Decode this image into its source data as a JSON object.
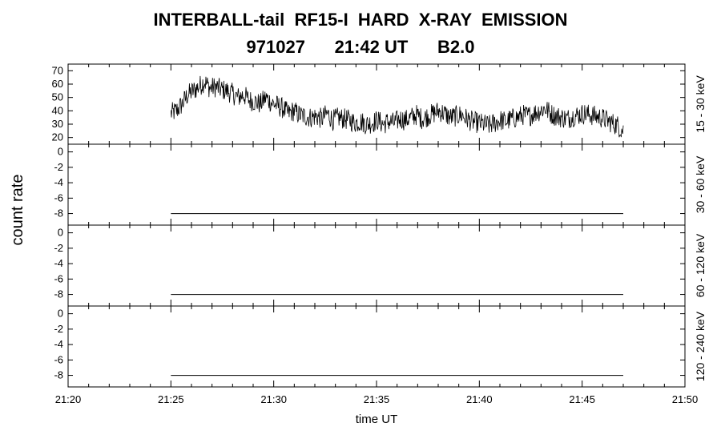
{
  "header": {
    "title": "INTERBALL-tail  RF15-I  HARD  X-RAY  EMISSION",
    "subtitle": "971027      21:42 UT      B2.0"
  },
  "chart_data": {
    "type": "line",
    "xlabel": "time UT",
    "ylabel": "count rate",
    "xlim_minutes": [
      0,
      30
    ],
    "x_ticks": [
      "21:20",
      "21:25",
      "21:30",
      "21:35",
      "21:40",
      "21:45",
      "21:50"
    ],
    "data_start": "21:25",
    "data_end": "21:47",
    "panels": [
      {
        "band": "15 - 30 keV",
        "ylim": [
          15,
          75
        ],
        "y_ticks": [
          "20",
          "30",
          "40",
          "50",
          "60",
          "70"
        ],
        "y_tick_values": [
          20,
          30,
          40,
          50,
          60,
          70
        ],
        "series": [
          {
            "x_start": "21:25",
            "x_end": "21:47",
            "values": [
              38,
              40,
              45,
              52,
              55,
              58,
              62,
              57,
              58,
              56,
              55,
              53,
              50,
              52,
              48,
              47,
              45,
              50,
              46,
              44,
              42,
              38,
              40,
              37,
              36,
              35,
              36,
              34,
              38,
              33,
              35,
              34,
              33,
              31,
              32,
              30,
              31,
              33,
              30,
              32,
              31,
              34,
              33,
              35,
              37,
              34,
              36,
              38,
              40,
              38,
              35,
              36,
              37,
              34,
              32,
              31,
              30,
              29,
              31,
              33,
              32,
              34,
              35,
              37,
              36,
              38,
              40,
              42,
              38,
              36,
              35,
              34,
              36,
              37,
              38,
              37,
              36,
              35,
              33,
              31,
              29,
              25
            ]
          }
        ]
      },
      {
        "band": "30 - 60 keV",
        "ylim": [
          -9.5,
          1
        ],
        "y_ticks": [
          "-8",
          "-6",
          "-4",
          "-2",
          "0"
        ],
        "y_tick_values": [
          -8,
          -6,
          -4,
          -2,
          0
        ],
        "series": [
          {
            "x_start": "21:25",
            "x_end": "21:47",
            "constant": -8
          }
        ]
      },
      {
        "band": "60 - 120 keV",
        "ylim": [
          -9.5,
          1
        ],
        "y_ticks": [
          "-8",
          "-6",
          "-4",
          "-2",
          "0"
        ],
        "y_tick_values": [
          -8,
          -6,
          -4,
          -2,
          0
        ],
        "series": [
          {
            "x_start": "21:25",
            "x_end": "21:47",
            "constant": -8
          }
        ]
      },
      {
        "band": "120 - 240 keV",
        "ylim": [
          -9.5,
          1
        ],
        "y_ticks": [
          "-8",
          "-6",
          "-4",
          "-2",
          "0"
        ],
        "y_tick_values": [
          -8,
          -6,
          -4,
          -2,
          0
        ],
        "series": [
          {
            "x_start": "21:25",
            "x_end": "21:47",
            "constant": -8
          }
        ]
      }
    ]
  }
}
